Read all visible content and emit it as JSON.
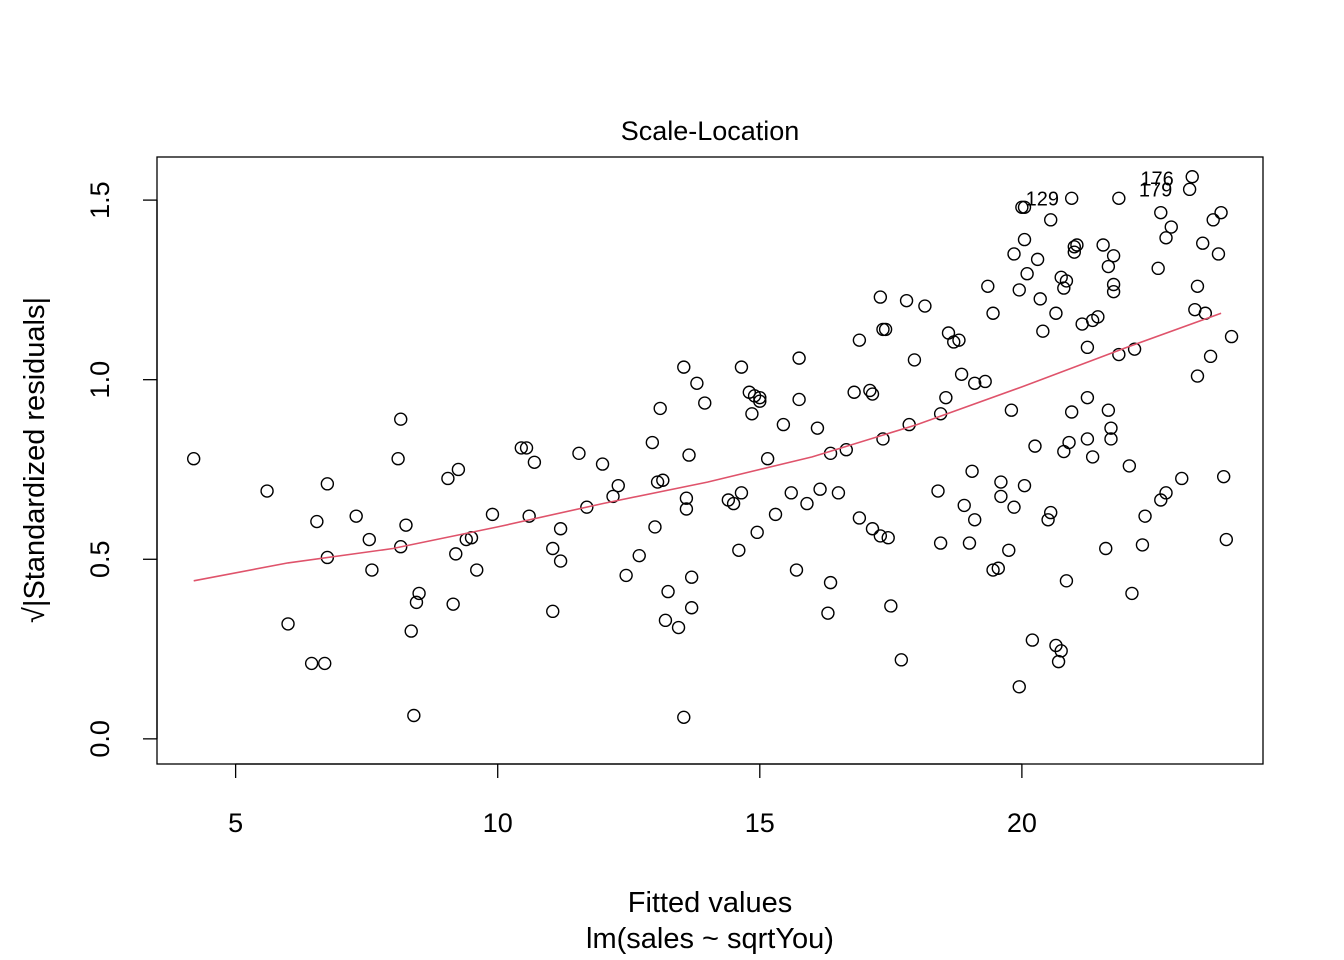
{
  "chart_data": {
    "type": "scatter",
    "title": "Scale-Location",
    "xlabel": "Fitted values",
    "xlabel_sub": "lm(sales ~ sqrtYou)",
    "ylabel": "√|Standardized residuals|",
    "xlim": [
      3.5,
      24.6
    ],
    "ylim": [
      -0.07,
      1.62
    ],
    "x_ticks": [
      5,
      10,
      15,
      20
    ],
    "y_ticks": [
      0.0,
      0.5,
      1.0,
      1.5
    ],
    "x_tick_labels": [
      "5",
      "10",
      "15",
      "20"
    ],
    "y_tick_labels": [
      "0.0",
      "0.5",
      "1.0",
      "1.5"
    ],
    "grid": false,
    "legend": "none",
    "colors": {
      "points": "#000000",
      "smooth": "#DF536B",
      "frame": "#000000"
    },
    "labeled_points": [
      {
        "label": "176",
        "x": 23.07,
        "y": 1.56
      },
      {
        "label": "179",
        "x": 23.04,
        "y": 1.53
      },
      {
        "label": "129",
        "x": 20.88,
        "y": 1.505
      }
    ],
    "smooth_line": [
      [
        4.2,
        0.44
      ],
      [
        6,
        0.49
      ],
      [
        8,
        0.53
      ],
      [
        10,
        0.59
      ],
      [
        12,
        0.655
      ],
      [
        14,
        0.715
      ],
      [
        16,
        0.785
      ],
      [
        18,
        0.875
      ],
      [
        20,
        0.98
      ],
      [
        22,
        1.09
      ],
      [
        23.8,
        1.185
      ]
    ],
    "points": [
      [
        4.2,
        0.78
      ],
      [
        5.6,
        0.69
      ],
      [
        6.0,
        0.32
      ],
      [
        6.45,
        0.21
      ],
      [
        6.7,
        0.21
      ],
      [
        6.55,
        0.605
      ],
      [
        6.75,
        0.71
      ],
      [
        6.75,
        0.505
      ],
      [
        7.3,
        0.62
      ],
      [
        7.55,
        0.555
      ],
      [
        7.6,
        0.47
      ],
      [
        8.1,
        0.78
      ],
      [
        8.15,
        0.89
      ],
      [
        8.15,
        0.535
      ],
      [
        8.25,
        0.595
      ],
      [
        8.35,
        0.3
      ],
      [
        8.45,
        0.38
      ],
      [
        8.5,
        0.405
      ],
      [
        8.4,
        0.065
      ],
      [
        9.05,
        0.725
      ],
      [
        9.15,
        0.375
      ],
      [
        9.2,
        0.515
      ],
      [
        9.25,
        0.75
      ],
      [
        9.4,
        0.555
      ],
      [
        9.5,
        0.56
      ],
      [
        9.6,
        0.47
      ],
      [
        9.9,
        0.625
      ],
      [
        10.45,
        0.81
      ],
      [
        10.55,
        0.81
      ],
      [
        10.6,
        0.62
      ],
      [
        10.7,
        0.77
      ],
      [
        11.05,
        0.355
      ],
      [
        11.05,
        0.53
      ],
      [
        11.2,
        0.585
      ],
      [
        11.2,
        0.495
      ],
      [
        11.55,
        0.795
      ],
      [
        11.7,
        0.645
      ],
      [
        12.0,
        0.765
      ],
      [
        12.2,
        0.675
      ],
      [
        12.3,
        0.705
      ],
      [
        12.45,
        0.455
      ],
      [
        12.7,
        0.51
      ],
      [
        12.95,
        0.825
      ],
      [
        13.0,
        0.59
      ],
      [
        13.05,
        0.715
      ],
      [
        13.15,
        0.72
      ],
      [
        13.1,
        0.92
      ],
      [
        13.2,
        0.33
      ],
      [
        13.25,
        0.41
      ],
      [
        13.45,
        0.31
      ],
      [
        13.55,
        1.035
      ],
      [
        13.6,
        0.64
      ],
      [
        13.6,
        0.67
      ],
      [
        13.55,
        0.06
      ],
      [
        13.65,
        0.79
      ],
      [
        13.7,
        0.45
      ],
      [
        13.7,
        0.365
      ],
      [
        13.8,
        0.99
      ],
      [
        13.95,
        0.935
      ],
      [
        14.4,
        0.665
      ],
      [
        14.5,
        0.655
      ],
      [
        14.6,
        0.525
      ],
      [
        14.65,
        0.685
      ],
      [
        14.65,
        1.035
      ],
      [
        14.8,
        0.965
      ],
      [
        14.85,
        0.905
      ],
      [
        14.9,
        0.955
      ],
      [
        14.95,
        0.575
      ],
      [
        15.0,
        0.95
      ],
      [
        15.0,
        0.94
      ],
      [
        15.15,
        0.78
      ],
      [
        15.3,
        0.625
      ],
      [
        15.45,
        0.875
      ],
      [
        15.6,
        0.685
      ],
      [
        15.7,
        0.47
      ],
      [
        15.75,
        0.945
      ],
      [
        15.75,
        1.06
      ],
      [
        15.9,
        0.655
      ],
      [
        16.1,
        0.865
      ],
      [
        16.15,
        0.695
      ],
      [
        16.3,
        0.35
      ],
      [
        16.35,
        0.435
      ],
      [
        16.35,
        0.795
      ],
      [
        16.5,
        0.685
      ],
      [
        16.65,
        0.805
      ],
      [
        16.8,
        0.965
      ],
      [
        16.9,
        1.11
      ],
      [
        16.9,
        0.615
      ],
      [
        17.1,
        0.97
      ],
      [
        17.15,
        0.96
      ],
      [
        17.15,
        0.585
      ],
      [
        17.3,
        1.23
      ],
      [
        17.3,
        0.565
      ],
      [
        17.35,
        0.835
      ],
      [
        17.35,
        1.14
      ],
      [
        17.4,
        1.14
      ],
      [
        17.45,
        0.56
      ],
      [
        17.5,
        0.37
      ],
      [
        17.7,
        0.22
      ],
      [
        17.8,
        1.22
      ],
      [
        17.85,
        0.875
      ],
      [
        17.95,
        1.055
      ],
      [
        18.15,
        1.205
      ],
      [
        18.4,
        0.69
      ],
      [
        18.45,
        0.545
      ],
      [
        18.45,
        0.905
      ],
      [
        18.55,
        0.95
      ],
      [
        18.6,
        1.13
      ],
      [
        18.7,
        1.105
      ],
      [
        18.8,
        1.11
      ],
      [
        18.85,
        1.015
      ],
      [
        18.9,
        0.65
      ],
      [
        19.0,
        0.545
      ],
      [
        19.05,
        0.745
      ],
      [
        19.1,
        0.99
      ],
      [
        19.1,
        0.61
      ],
      [
        19.3,
        0.995
      ],
      [
        19.35,
        1.26
      ],
      [
        19.45,
        0.47
      ],
      [
        19.45,
        1.185
      ],
      [
        19.55,
        0.475
      ],
      [
        19.6,
        0.715
      ],
      [
        19.6,
        0.675
      ],
      [
        19.75,
        0.525
      ],
      [
        19.8,
        0.915
      ],
      [
        19.85,
        0.645
      ],
      [
        19.85,
        1.35
      ],
      [
        19.95,
        1.25
      ],
      [
        19.95,
        0.145
      ],
      [
        20.05,
        1.48
      ],
      [
        20.05,
        0.705
      ],
      [
        20.05,
        1.39
      ],
      [
        20.1,
        1.295
      ],
      [
        20.2,
        0.275
      ],
      [
        20.25,
        0.815
      ],
      [
        20.3,
        1.335
      ],
      [
        20.35,
        1.225
      ],
      [
        20.4,
        1.135
      ],
      [
        20.5,
        0.61
      ],
      [
        20.55,
        0.63
      ],
      [
        20.55,
        1.445
      ],
      [
        20.65,
        1.185
      ],
      [
        20.65,
        0.26
      ],
      [
        20.7,
        0.215
      ],
      [
        20.75,
        1.285
      ],
      [
        20.75,
        0.245
      ],
      [
        20.8,
        1.255
      ],
      [
        20.8,
        0.8
      ],
      [
        20.85,
        1.275
      ],
      [
        20.85,
        0.44
      ],
      [
        20.9,
        0.825
      ],
      [
        20.95,
        0.91
      ],
      [
        21.0,
        1.37
      ],
      [
        21.0,
        1.355
      ],
      [
        21.05,
        1.375
      ],
      [
        21.15,
        1.155
      ],
      [
        21.25,
        0.95
      ],
      [
        21.25,
        1.09
      ],
      [
        21.25,
        0.835
      ],
      [
        21.35,
        0.785
      ],
      [
        21.35,
        1.165
      ],
      [
        21.45,
        1.175
      ],
      [
        21.55,
        1.375
      ],
      [
        21.6,
        0.53
      ],
      [
        21.65,
        0.915
      ],
      [
        21.65,
        1.315
      ],
      [
        21.7,
        0.865
      ],
      [
        21.7,
        0.835
      ],
      [
        21.75,
        1.345
      ],
      [
        21.75,
        1.265
      ],
      [
        21.75,
        1.245
      ],
      [
        21.85,
        1.07
      ],
      [
        21.85,
        1.505
      ],
      [
        22.05,
        0.76
      ],
      [
        22.1,
        0.405
      ],
      [
        22.15,
        1.085
      ],
      [
        22.3,
        0.54
      ],
      [
        22.35,
        0.62
      ],
      [
        22.6,
        1.31
      ],
      [
        22.65,
        0.665
      ],
      [
        22.65,
        1.465
      ],
      [
        22.75,
        0.685
      ],
      [
        22.75,
        1.395
      ],
      [
        22.85,
        1.425
      ],
      [
        23.05,
        0.725
      ],
      [
        23.2,
        1.53
      ],
      [
        23.25,
        1.565
      ],
      [
        23.3,
        1.195
      ],
      [
        23.35,
        1.01
      ],
      [
        23.35,
        1.26
      ],
      [
        23.45,
        1.38
      ],
      [
        23.5,
        1.185
      ],
      [
        23.6,
        1.065
      ],
      [
        23.65,
        1.445
      ],
      [
        23.75,
        1.35
      ],
      [
        23.8,
        1.465
      ],
      [
        23.85,
        0.73
      ],
      [
        23.9,
        0.555
      ],
      [
        24.0,
        1.12
      ],
      [
        20.0,
        1.48
      ],
      [
        20.95,
        1.505
      ]
    ]
  }
}
